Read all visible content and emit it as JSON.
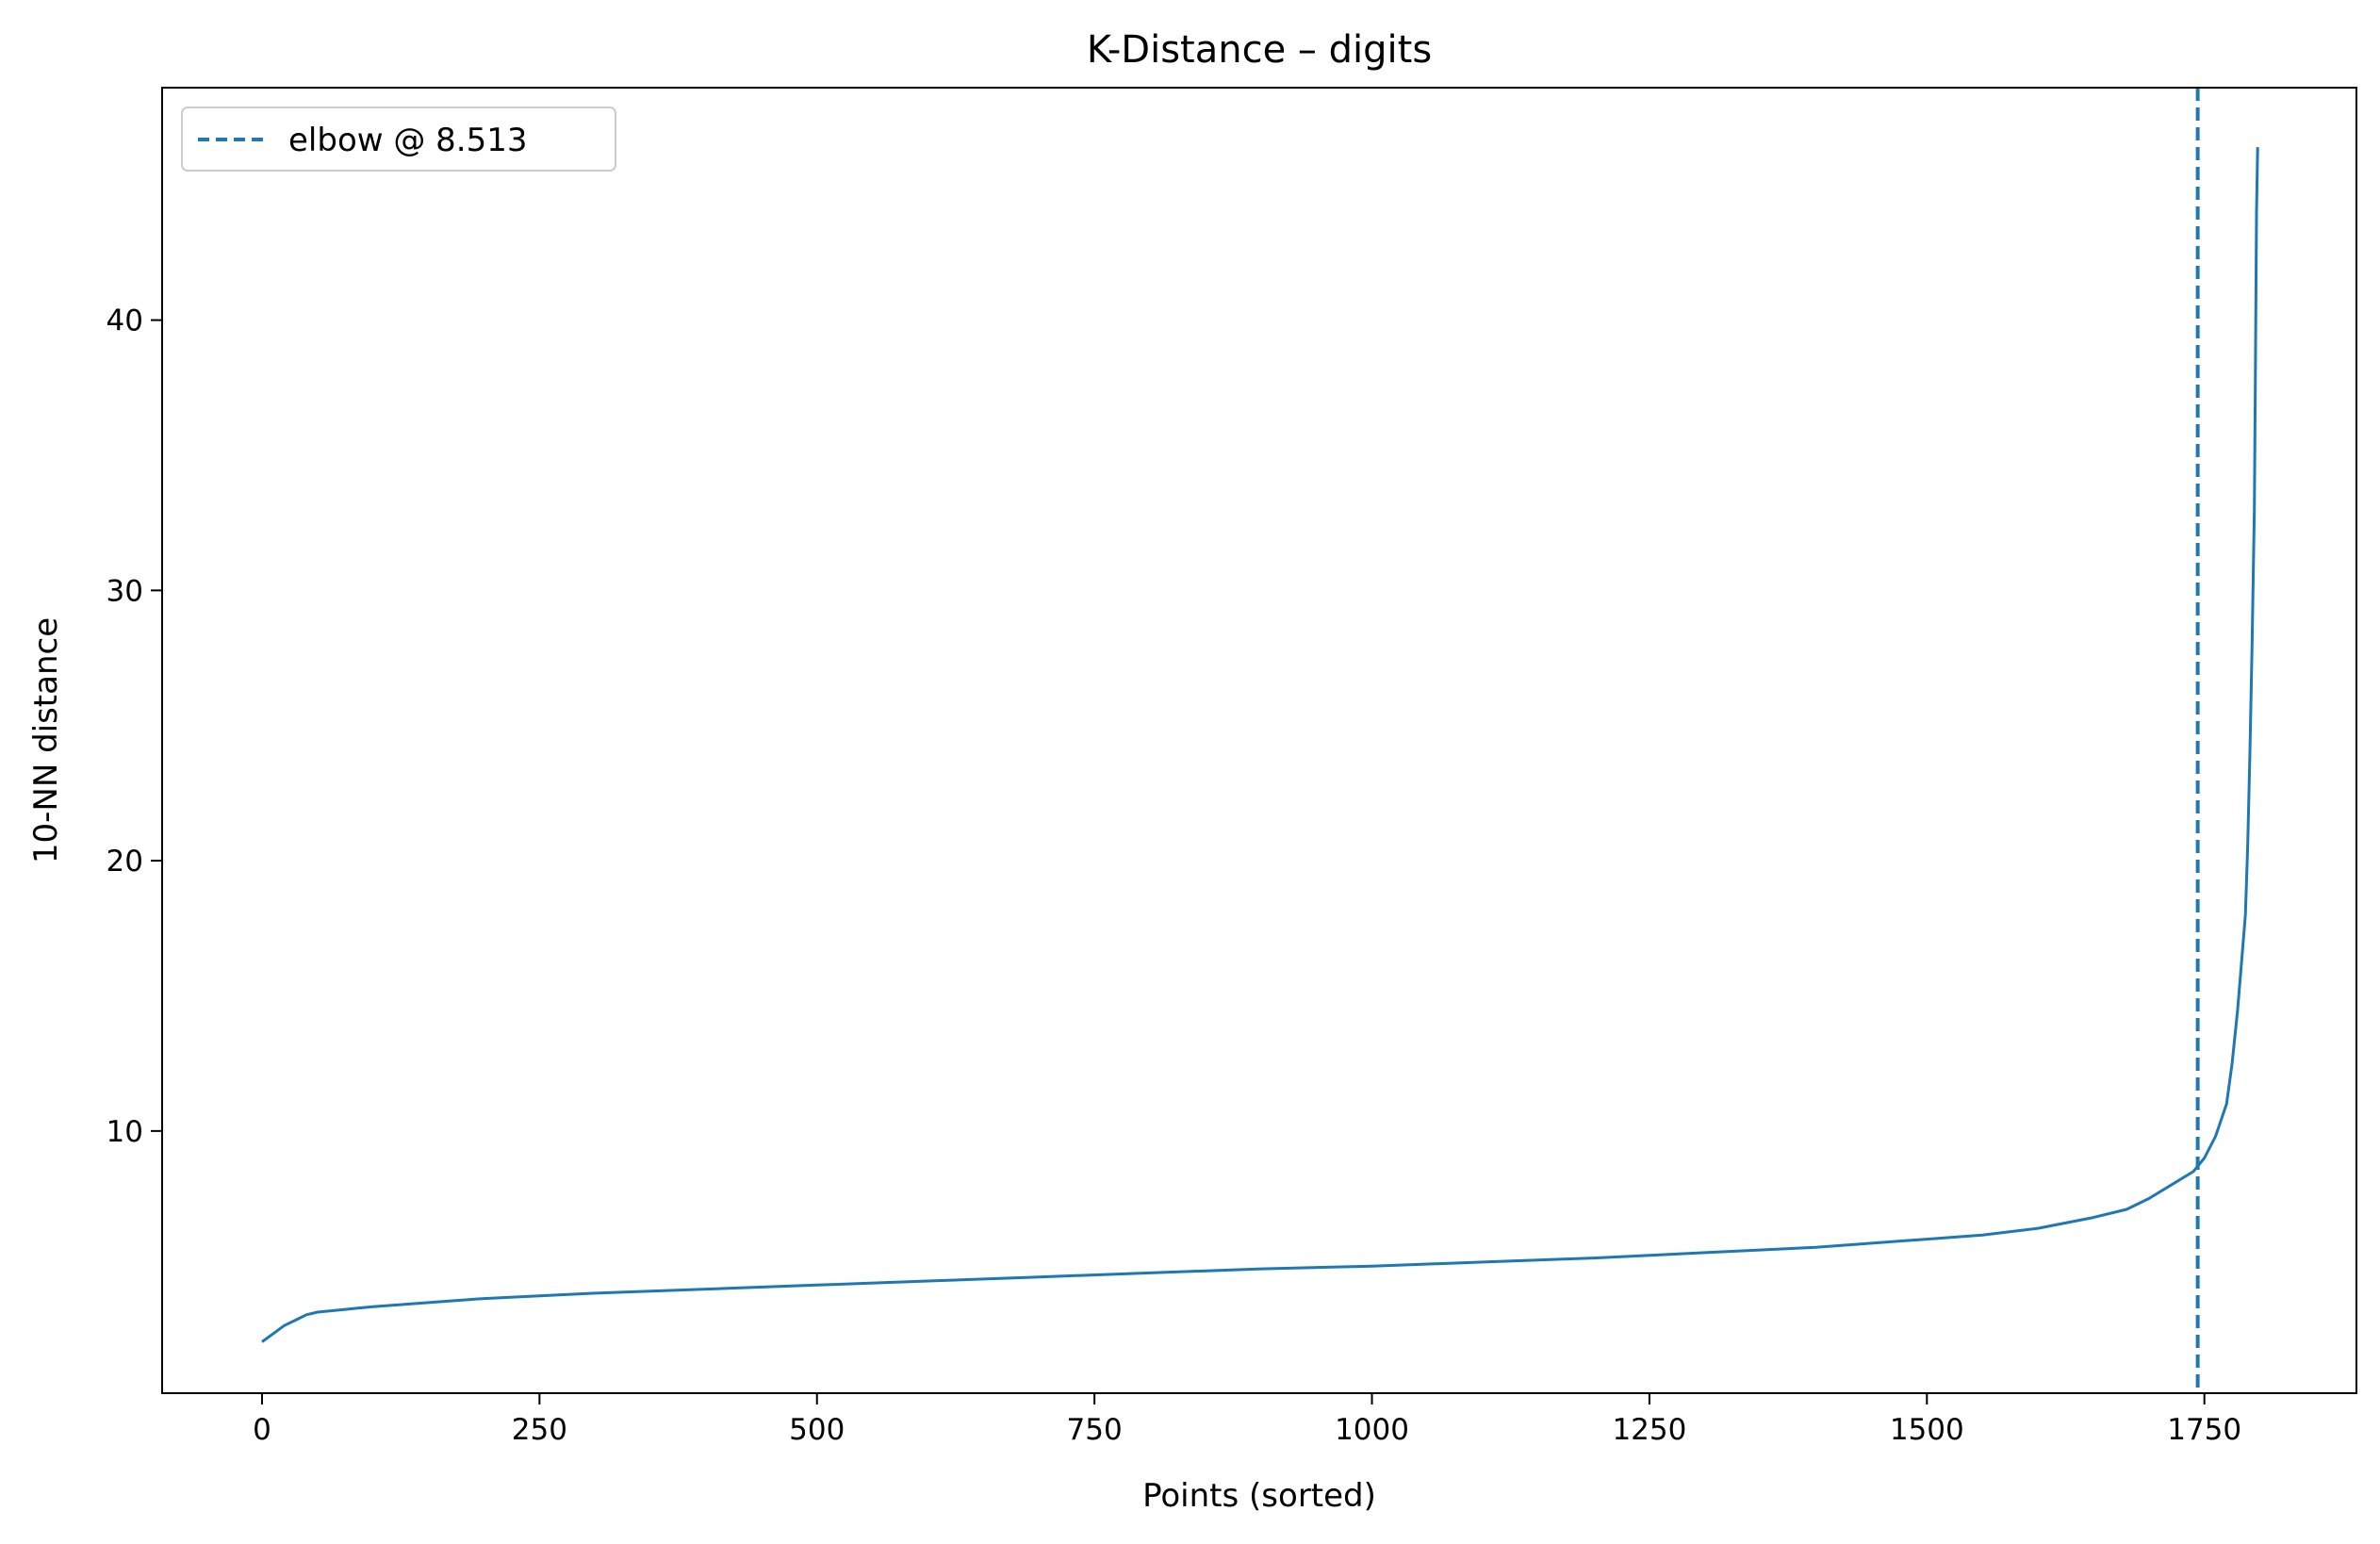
{
  "chart_data": {
    "type": "line",
    "title": "K-Distance – digits",
    "xlabel": "Points (sorted)",
    "ylabel": "10-NN distance",
    "xlim": [
      -90,
      1887
    ],
    "ylim": [
      0.3,
      48.6
    ],
    "xticks": [
      0,
      250,
      500,
      750,
      1000,
      1250,
      1500,
      1750
    ],
    "yticks": [
      10,
      20,
      30,
      40
    ],
    "grid": false,
    "legend_position": "top-left",
    "series": [
      {
        "kind": "line",
        "color": "#1f77b4",
        "x": [
          0,
          10,
          20,
          30,
          40,
          50,
          75,
          100,
          150,
          200,
          250,
          300,
          400,
          500,
          600,
          700,
          800,
          900,
          1000,
          1100,
          1200,
          1300,
          1400,
          1500,
          1550,
          1600,
          1650,
          1680,
          1700,
          1720,
          1740,
          1750,
          1760,
          1770,
          1775,
          1780,
          1784,
          1787,
          1789,
          1791,
          1793,
          1795,
          1796,
          1797,
          1798
        ],
        "y": [
          2.2,
          2.5,
          2.8,
          3.0,
          3.2,
          3.3,
          3.4,
          3.5,
          3.65,
          3.8,
          3.9,
          4.0,
          4.15,
          4.3,
          4.45,
          4.6,
          4.75,
          4.9,
          5.0,
          5.15,
          5.3,
          5.5,
          5.7,
          6.0,
          6.15,
          6.4,
          6.8,
          7.1,
          7.5,
          8.0,
          8.5,
          9.0,
          9.8,
          11.0,
          12.5,
          14.5,
          16.5,
          18.0,
          20.5,
          24.0,
          28.0,
          33.0,
          38.0,
          44.0,
          46.4
        ]
      },
      {
        "kind": "vline",
        "name": "elbow @ 8.513",
        "x": 1744,
        "color": "#1f77b4",
        "style": "dashed"
      }
    ]
  }
}
